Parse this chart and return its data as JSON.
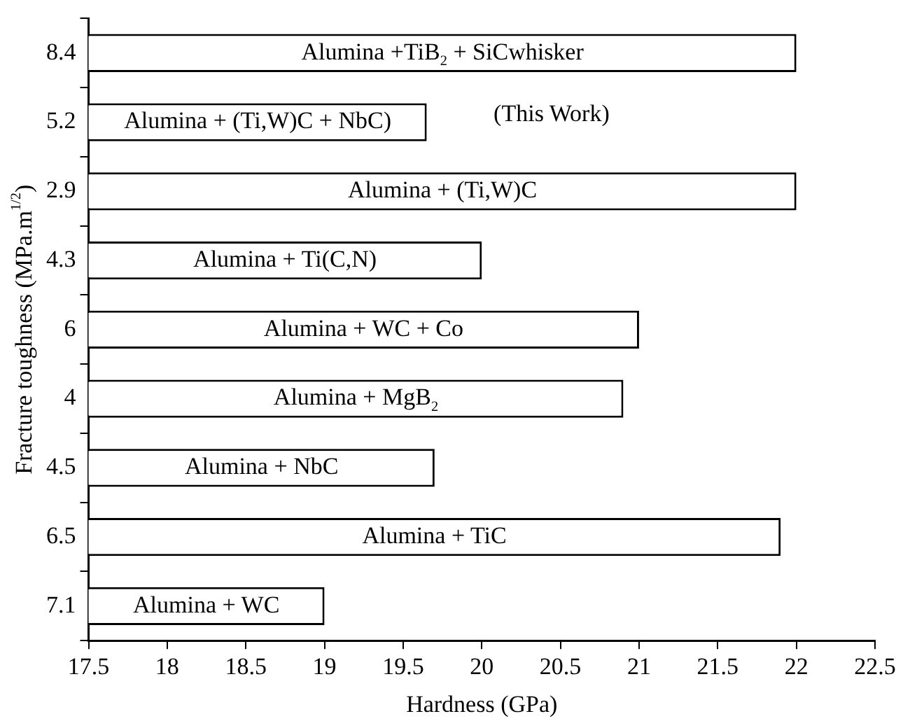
{
  "chart_data": {
    "type": "bar",
    "orientation": "horizontal",
    "categories": [
      "8.4",
      "5.2",
      "2.9",
      "4.3",
      "6",
      "4",
      "4.5",
      "6.5",
      "7.1"
    ],
    "values": [
      22,
      19.65,
      22,
      20,
      21,
      20.9,
      19.7,
      21.9,
      19
    ],
    "color": "#ffffff",
    "xlabel": "Hardness (GPa)",
    "ylabel": "Fracture toughness (MPa.m$^{1/2}$)",
    "xlim": [
      17.5,
      22.5
    ],
    "xticks": [
      17.5,
      18,
      18.5,
      19,
      19.5,
      20,
      20.5,
      21,
      21.5,
      22,
      22.5
    ],
    "grid": false,
    "legend": false,
    "annotations": [
      "Alumina +TiB$_{2}$ + SiCwhisker",
      "Alumina + (Ti,W)C + NbC)",
      "Alumina + (Ti,W)C",
      "Alumina + Ti(C,N)",
      "Alumina + WC + Co",
      "Alumina + MgB$_{2}$",
      "Alumina + NbC",
      "Alumina + TiC",
      "Alumina + WC",
      "(This Work)"
    ]
  }
}
